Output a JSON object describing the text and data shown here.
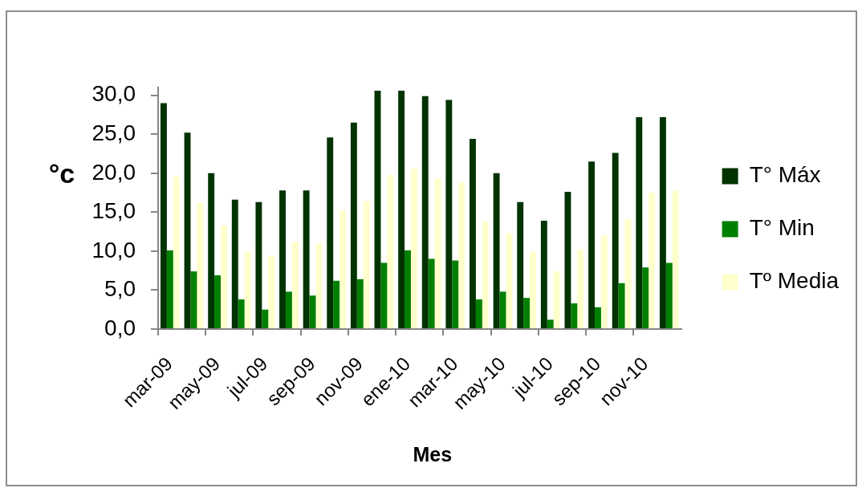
{
  "chart_data": {
    "type": "bar",
    "xlabel": "Mes",
    "ylabel": "°c",
    "categories": [
      "mar-09",
      null,
      "may-09",
      null,
      "jul-09",
      null,
      "sep-09",
      null,
      "nov-09",
      null,
      "ene-10",
      null,
      "mar-10",
      null,
      "may-10",
      null,
      "jul-10",
      null,
      "sep-10",
      null,
      "nov-10",
      null
    ],
    "series": [
      {
        "name": "T° Máx",
        "color": "#003300",
        "values": [
          29.0,
          25.2,
          20.0,
          16.6,
          16.3,
          17.8,
          17.8,
          24.6,
          26.5,
          30.6,
          30.6,
          29.9,
          29.4,
          24.4,
          20.0,
          16.3,
          13.9,
          17.6,
          21.5,
          22.6,
          27.2,
          27.2
        ]
      },
      {
        "name": "T° Min",
        "color": "#008000",
        "values": [
          10.1,
          7.4,
          6.9,
          3.8,
          2.5,
          4.8,
          4.3,
          6.2,
          6.4,
          8.5,
          10.1,
          9.0,
          8.8,
          3.8,
          4.8,
          4.0,
          1.2,
          3.3,
          2.8,
          5.9,
          7.9,
          8.5
        ]
      },
      {
        "name": "Tº Media",
        "color": "#ffffcc",
        "values": [
          19.6,
          16.2,
          13.3,
          9.9,
          9.4,
          11.2,
          11.0,
          15.2,
          16.4,
          19.8,
          20.6,
          19.3,
          18.8,
          13.8,
          12.3,
          9.9,
          7.4,
          10.2,
          12.0,
          14.1,
          17.5,
          17.8
        ]
      }
    ],
    "ylim": [
      0,
      31
    ],
    "yticks": [
      {
        "value": 0,
        "label": "0,0"
      },
      {
        "value": 5,
        "label": "5,0"
      },
      {
        "value": 10,
        "label": "10,0"
      },
      {
        "value": 15,
        "label": "15,0"
      },
      {
        "value": 20,
        "label": "20,0"
      },
      {
        "value": 25,
        "label": "25,0"
      },
      {
        "value": 30,
        "label": "30,0"
      }
    ],
    "grid": false,
    "legend": "right"
  }
}
